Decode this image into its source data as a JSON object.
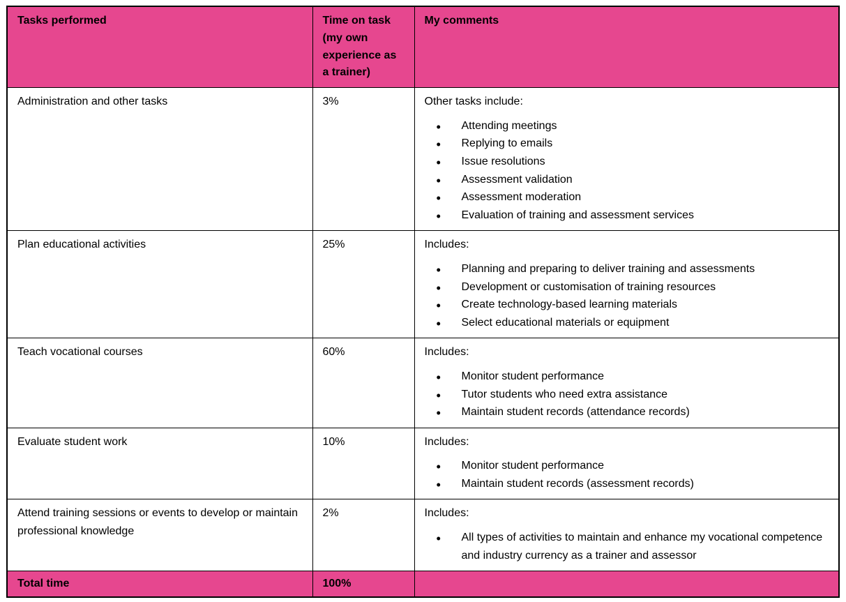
{
  "colors": {
    "accent": "#E6478F",
    "border": "#000000",
    "text": "#000000",
    "background": "#FFFFFF"
  },
  "table": {
    "headers": [
      "Tasks performed",
      "Time on task (my own experience as a trainer)",
      "My comments"
    ],
    "rows": [
      {
        "task": "Administration and other tasks",
        "time": "3%",
        "comments_intro": "Other tasks include:",
        "comments_bullets": [
          "Attending meetings",
          "Replying to emails",
          "Issue resolutions",
          "Assessment validation",
          "Assessment moderation",
          "Evaluation of training and assessment services"
        ]
      },
      {
        "task": "Plan educational activities",
        "time": "25%",
        "comments_intro": "Includes:",
        "comments_bullets": [
          "Planning and preparing to deliver training and assessments",
          "Development or customisation of training resources",
          "Create technology-based learning materials",
          "Select educational materials or equipment"
        ]
      },
      {
        "task": "Teach vocational courses",
        "time": "60%",
        "comments_intro": "Includes:",
        "comments_bullets": [
          "Monitor student performance",
          "Tutor students who need extra assistance",
          "Maintain student records (attendance records)"
        ]
      },
      {
        "task": "Evaluate student work",
        "time": "10%",
        "comments_intro": "Includes:",
        "comments_bullets": [
          "Monitor student performance",
          "Maintain student records (assessment records)"
        ]
      },
      {
        "task": "Attend training sessions or events to develop or maintain professional knowledge",
        "time": "2%",
        "comments_intro": "Includes:",
        "comments_bullets": [
          "All types of activities to maintain and enhance my vocational competence and industry currency as a trainer and assessor"
        ]
      }
    ],
    "footer": {
      "label": "Total time",
      "value": "100%",
      "comments": ""
    }
  }
}
